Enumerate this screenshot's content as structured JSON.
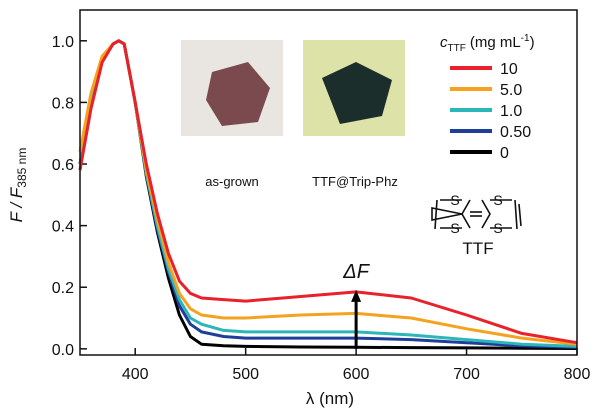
{
  "chart_data": {
    "type": "line",
    "x_label": "λ (nm)",
    "y_label": {
      "main": "F / F",
      "sub": "385 nm"
    },
    "legend_title": {
      "main": "c",
      "sub": "TTF",
      "unit": "(mg mL",
      "exp": "-1",
      "close": ")"
    },
    "legend": "upper right",
    "xlim": [
      350,
      800
    ],
    "ylim": [
      -0.02,
      1.1
    ],
    "xticks": [
      400,
      500,
      600,
      700,
      800
    ],
    "yticks": [
      {
        "value": 0,
        "label": "0.0"
      },
      0.2,
      0.4,
      0.6,
      0.8,
      {
        "value": 1,
        "label": "1.0"
      }
    ],
    "x": [
      350,
      360,
      370,
      380,
      385,
      390,
      400,
      410,
      420,
      430,
      440,
      450,
      460,
      480,
      500,
      550,
      600,
      650,
      700,
      750,
      800
    ],
    "series": [
      {
        "name": "10",
        "color": "#e8212a",
        "values": [
          0.58,
          0.78,
          0.93,
          0.99,
          1.0,
          0.99,
          0.8,
          0.6,
          0.44,
          0.31,
          0.22,
          0.18,
          0.165,
          0.16,
          0.155,
          0.17,
          0.185,
          0.165,
          0.11,
          0.05,
          0.02
        ]
      },
      {
        "name": "5.0",
        "color": "#f4a21f",
        "values": [
          0.64,
          0.83,
          0.95,
          0.99,
          1.0,
          0.99,
          0.8,
          0.58,
          0.42,
          0.28,
          0.18,
          0.13,
          0.11,
          0.1,
          0.1,
          0.11,
          0.115,
          0.1,
          0.065,
          0.035,
          0.015
        ]
      },
      {
        "name": "1.0",
        "color": "#2bb6b8",
        "values": [
          0.6,
          0.8,
          0.94,
          0.99,
          1.0,
          0.99,
          0.8,
          0.57,
          0.4,
          0.26,
          0.16,
          0.1,
          0.08,
          0.06,
          0.055,
          0.055,
          0.055,
          0.045,
          0.03,
          0.015,
          0.008
        ]
      },
      {
        "name": "0.50",
        "color": "#1f3e9a",
        "values": [
          0.6,
          0.8,
          0.94,
          0.99,
          1.0,
          0.99,
          0.8,
          0.57,
          0.39,
          0.25,
          0.14,
          0.08,
          0.055,
          0.04,
          0.035,
          0.035,
          0.035,
          0.03,
          0.02,
          0.01,
          0.005
        ]
      },
      {
        "name": "0",
        "color": "#000000",
        "values": [
          0.6,
          0.8,
          0.94,
          0.99,
          1.0,
          0.99,
          0.8,
          0.56,
          0.38,
          0.23,
          0.11,
          0.04,
          0.015,
          0.01,
          0.008,
          0.006,
          0.005,
          0.004,
          0.003,
          0.002,
          0.001
        ]
      }
    ],
    "annotation": {
      "text": "ΔF",
      "x": 600,
      "y": 0.185
    },
    "insets": [
      "as-grown",
      "TTF@Trip-Phz"
    ],
    "molecule": {
      "label": "TTF",
      "atoms": [
        "S",
        "S",
        "S",
        "S"
      ]
    }
  }
}
